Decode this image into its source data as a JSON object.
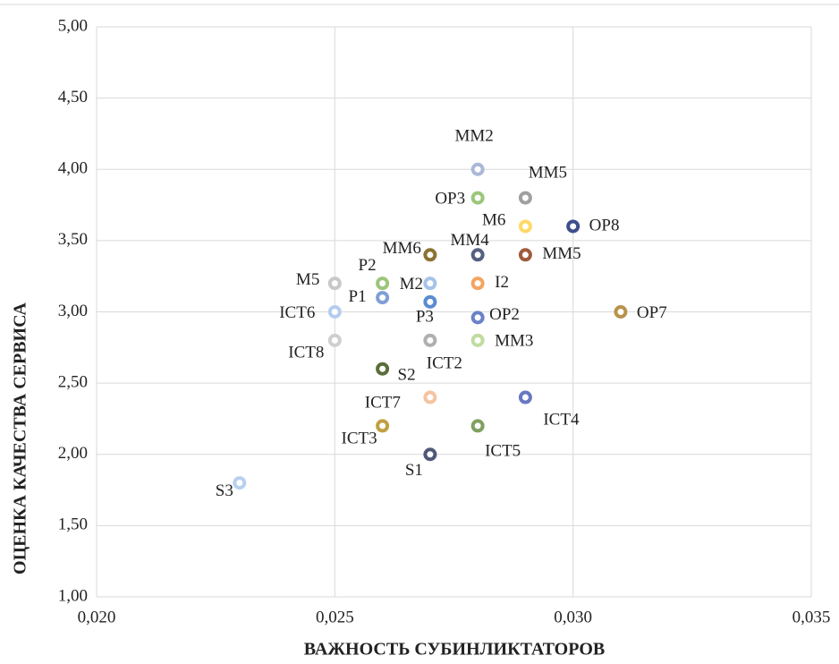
{
  "chart_data": {
    "type": "scatter",
    "x_label": "ВАЖНОСТЬ СУБИНЛИКТАТОРОВ",
    "y_label": "ОЦЕНКА КАЧЕСТВА СЕРВИСА",
    "labels": [
      "MM2",
      "MM5",
      "OP3",
      "M6",
      "OP8",
      "MM6",
      "MM4",
      "MM5",
      "M5",
      "P2",
      "M2",
      "I2",
      "P1",
      "P3",
      "ICT6",
      "OP2",
      "OP7",
      "ICT8",
      "ICT2",
      "MM3",
      "S2",
      "ICT7",
      "ICT4",
      "ICT3",
      "ICT5",
      "S1",
      "S3"
    ],
    "x": [
      0.028,
      0.029,
      0.028,
      0.029,
      0.03,
      0.027,
      0.028,
      0.029,
      0.025,
      0.026,
      0.027,
      0.028,
      0.026,
      0.027,
      0.025,
      0.028,
      0.031,
      0.025,
      0.027,
      0.028,
      0.026,
      0.027,
      0.029,
      0.026,
      0.028,
      0.027,
      0.023
    ],
    "values": [
      4.0,
      3.8,
      3.8,
      3.6,
      3.6,
      3.4,
      3.4,
      3.4,
      3.2,
      3.2,
      3.2,
      3.2,
      3.1,
      3.07,
      3.0,
      2.96,
      3.0,
      2.8,
      2.8,
      2.8,
      2.6,
      2.4,
      2.4,
      2.2,
      2.2,
      2.0,
      1.8
    ],
    "colors": [
      "#a9b8d8",
      "#a0a0a0",
      "#9bc67a",
      "#ffd966",
      "#3e4f8a",
      "#8c7232",
      "#555f80",
      "#a05a3a",
      "#c8c8c8",
      "#9bc67a",
      "#a6c4e8",
      "#f4a460",
      "#7f9fd6",
      "#5b8bd0",
      "#b4cdee",
      "#6a82c8",
      "#b8934a",
      "#cfcfcf",
      "#b0b0b0",
      "#c0dca0",
      "#5a6e3a",
      "#f6c4a0",
      "#6878c0",
      "#c0a040",
      "#80a060",
      "#505878",
      "#b8d0f0"
    ],
    "xlim": [
      0.02,
      0.035
    ],
    "xticks": [
      {
        "value": 0.02,
        "label": "0,020"
      },
      {
        "value": 0.025,
        "label": "0,025"
      },
      {
        "value": 0.03,
        "label": "0,030"
      },
      {
        "value": 0.035,
        "label": "0,035"
      }
    ],
    "ylim": [
      1.0,
      5.0
    ],
    "yticks": [
      {
        "value": 1.0,
        "label": "1,00"
      },
      {
        "value": 1.5,
        "label": "1,50"
      },
      {
        "value": 2.0,
        "label": "2,00"
      },
      {
        "value": 2.5,
        "label": "2,50"
      },
      {
        "value": 3.0,
        "label": "3,00"
      },
      {
        "value": 3.5,
        "label": "3,50"
      },
      {
        "value": 4.0,
        "label": "4,00"
      },
      {
        "value": 4.5,
        "label": "4,50"
      },
      {
        "value": 5.0,
        "label": "5,00"
      }
    ],
    "grid": true
  }
}
